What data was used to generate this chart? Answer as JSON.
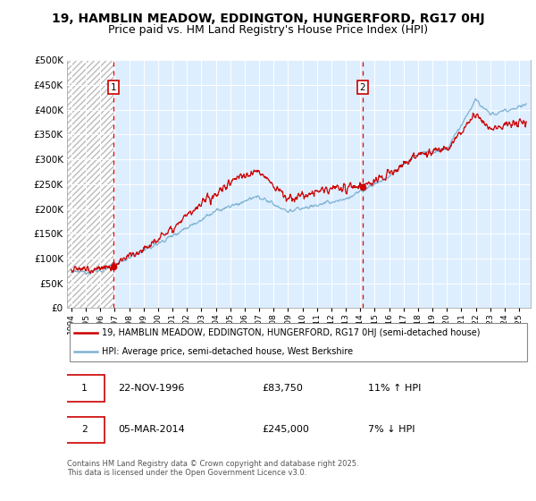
{
  "title_line1": "19, HAMBLIN MEADOW, EDDINGTON, HUNGERFORD, RG17 0HJ",
  "title_line2": "Price paid vs. HM Land Registry's House Price Index (HPI)",
  "ylim": [
    0,
    500000
  ],
  "yticks": [
    0,
    50000,
    100000,
    150000,
    200000,
    250000,
    300000,
    350000,
    400000,
    450000,
    500000
  ],
  "xlim_start": 1993.7,
  "xlim_end": 2025.8,
  "xtick_years": [
    1994,
    1995,
    1996,
    1997,
    1998,
    1999,
    2000,
    2001,
    2002,
    2003,
    2004,
    2005,
    2006,
    2007,
    2008,
    2009,
    2010,
    2011,
    2012,
    2013,
    2014,
    2015,
    2016,
    2017,
    2018,
    2019,
    2020,
    2021,
    2022,
    2023,
    2024,
    2025
  ],
  "sale1_date": 1996.9,
  "sale1_price": 83750,
  "sale1_label": "1",
  "sale1_hpi_pct": "11% ↑ HPI",
  "sale1_date_str": "22-NOV-1996",
  "sale2_date": 2014.17,
  "sale2_price": 245000,
  "sale2_label": "2",
  "sale2_hpi_pct": "7% ↓ HPI",
  "sale2_date_str": "05-MAR-2014",
  "vline1_x": 1996.9,
  "vline2_x": 2014.17,
  "legend_line1": "19, HAMBLIN MEADOW, EDDINGTON, HUNGERFORD, RG17 0HJ (semi-detached house)",
  "legend_line2": "HPI: Average price, semi-detached house, West Berkshire",
  "red_color": "#cc0000",
  "blue_color": "#7fb3d3",
  "background_color": "#ddeeff",
  "footnote": "Contains HM Land Registry data © Crown copyright and database right 2025.\nThis data is licensed under the Open Government Licence v3.0.",
  "title_fontsize": 10,
  "subtitle_fontsize": 9
}
